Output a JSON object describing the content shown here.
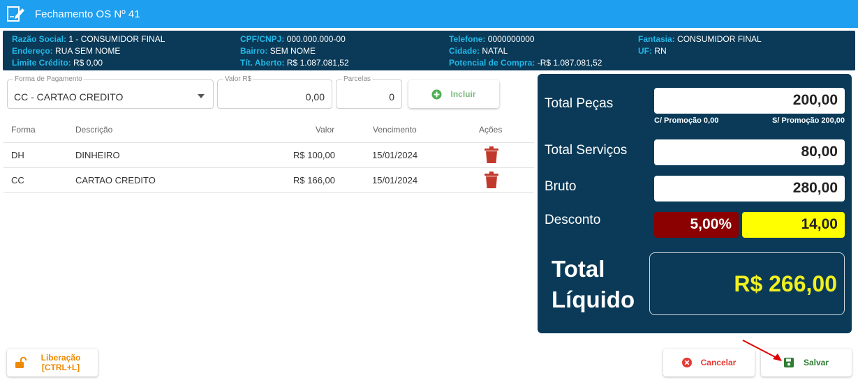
{
  "window": {
    "title": "Fechamento OS Nº 41"
  },
  "customer": {
    "razao_social_label": "Razão Social:",
    "razao_social": "1 - CONSUMIDOR FINAL",
    "endereco_label": "Endereço:",
    "endereco": "RUA SEM NOME",
    "limite_label": "Limite Crédito:",
    "limite": "R$ 0,00",
    "cpf_label": "CPF/CNPJ:",
    "cpf": "000.000.000-00",
    "bairro_label": "Bairro:",
    "bairro": "SEM NOME",
    "tit_label": "Tít. Aberto:",
    "tit": "R$ 1.087.081,52",
    "telefone_label": "Telefone:",
    "telefone": "0000000000",
    "cidade_label": "Cidade:",
    "cidade": "NATAL",
    "potencial_label": "Potencial de Compra:",
    "potencial": "-R$ 1.087.081,52",
    "fantasia_label": "Fantasia:",
    "fantasia": "CONSUMIDOR FINAL",
    "uf_label": "UF:",
    "uf": "RN"
  },
  "payment_form": {
    "forma_label": "Forma de Pagamento",
    "forma_value": "CC - CARTAO CREDITO",
    "valor_label": "Valor R$",
    "valor_value": "0,00",
    "parcelas_label": "Parcelas",
    "parcelas_value": "0",
    "incluir_label": "Incluir"
  },
  "table": {
    "headers": {
      "forma": "Forma",
      "descricao": "Descrição",
      "valor": "Valor",
      "vencimento": "Vencimento",
      "acoes": "Ações"
    },
    "rows": [
      {
        "forma": "DH",
        "descricao": "DINHEIRO",
        "valor": "R$ 100,00",
        "vencimento": "15/01/2024"
      },
      {
        "forma": "CC",
        "descricao": "CARTAO CREDITO",
        "valor": "R$ 166,00",
        "vencimento": "15/01/2024"
      }
    ]
  },
  "totals": {
    "pecas_label": "Total Peças",
    "pecas_value": "200,00",
    "com_promo": "C/ Promoção 0,00",
    "sem_promo": "S/ Promoção 200,00",
    "servicos_label": "Total Serviços",
    "servicos_value": "80,00",
    "bruto_label": "Bruto",
    "bruto_value": "280,00",
    "desconto_label": "Desconto",
    "desconto_pct": "5,00%",
    "desconto_value": "14,00",
    "liquido_label_1": "Total",
    "liquido_label_2": "Líquido",
    "liquido_value": "R$ 266,00"
  },
  "footer": {
    "liberacao_label_1": "Liberação",
    "liberacao_label_2": "[CTRL+L]",
    "cancelar_label": "Cancelar",
    "salvar_label": "Salvar"
  },
  "colors": {
    "titlebar": "#1e9fef",
    "panel": "#0a3a58",
    "label_cyan": "#21b8e8",
    "desconto_pct_bg": "#8b0000",
    "desconto_val_bg": "#ffff00",
    "liquido_text": "#f0f020",
    "incluir_green": "#4caf50",
    "cancel_red": "#e53935",
    "save_green": "#2e7d32",
    "liberacao_orange": "#ef8a00"
  }
}
